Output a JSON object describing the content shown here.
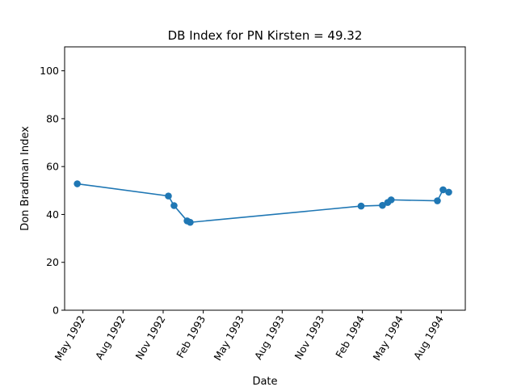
{
  "chart_data": {
    "type": "line",
    "title": "DB Index for PN Kirsten = 49.32",
    "xlabel": "Date",
    "ylabel": "Don Bradman Index",
    "xlim": [
      "1992-03-20",
      "1994-09-25"
    ],
    "ylim": [
      0,
      110
    ],
    "yticks": [
      0,
      20,
      40,
      60,
      80,
      100
    ],
    "xticks": [
      {
        "date": "1992-05-01",
        "label": "May 1992"
      },
      {
        "date": "1992-08-01",
        "label": "Aug 1992"
      },
      {
        "date": "1992-11-01",
        "label": "Nov 1992"
      },
      {
        "date": "1993-02-01",
        "label": "Feb 1993"
      },
      {
        "date": "1993-05-01",
        "label": "May 1993"
      },
      {
        "date": "1993-08-01",
        "label": "Aug 1993"
      },
      {
        "date": "1993-11-01",
        "label": "Nov 1993"
      },
      {
        "date": "1994-02-01",
        "label": "Feb 1994"
      },
      {
        "date": "1994-05-01",
        "label": "May 1994"
      },
      {
        "date": "1994-08-01",
        "label": "Aug 1994"
      }
    ],
    "grid": false,
    "color": "#1f77b4",
    "points": [
      {
        "x": "1992-04-18",
        "y": 52.8
      },
      {
        "x": "1992-11-13",
        "y": 47.7
      },
      {
        "x": "1992-11-26",
        "y": 43.7
      },
      {
        "x": "1992-12-26",
        "y": 37.3
      },
      {
        "x": "1993-01-02",
        "y": 36.7
      },
      {
        "x": "1994-01-29",
        "y": 43.5
      },
      {
        "x": "1994-03-19",
        "y": 43.8
      },
      {
        "x": "1994-03-31",
        "y": 45.0
      },
      {
        "x": "1994-04-08",
        "y": 46.1
      },
      {
        "x": "1994-07-23",
        "y": 45.7
      },
      {
        "x": "1994-08-05",
        "y": 50.3
      },
      {
        "x": "1994-08-18",
        "y": 49.3
      }
    ]
  }
}
